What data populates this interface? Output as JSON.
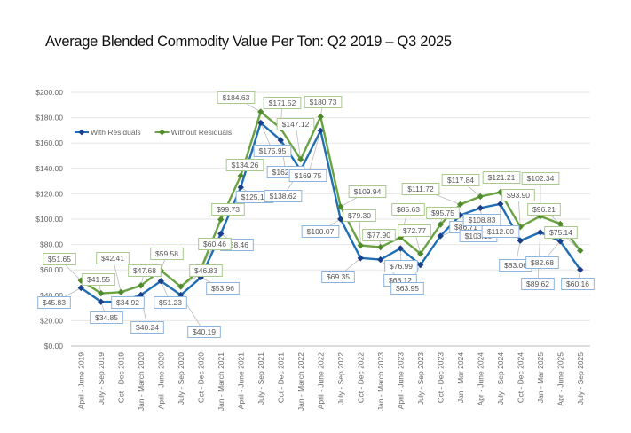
{
  "chart_data": {
    "type": "line",
    "title": "Average Blended Commodity Value Per Ton: Q2 2019 – Q3 2025",
    "xlabel": "",
    "ylabel": "",
    "ylim": [
      0,
      200
    ],
    "yticks": [
      "$0.00",
      "$20.00",
      "$40.00",
      "$60.00",
      "$80.00",
      "$100.00",
      "$120.00",
      "$140.00",
      "$160.00",
      "$180.00",
      "$200.00"
    ],
    "grid": true,
    "legend": "top-left",
    "categories": [
      "April - June 2019",
      "July - Sep 2019",
      "Oct - Dec 2019",
      "Jan - March 2020",
      "April - June 2020",
      "July - Sep 2020",
      "Oct - Dec 2020",
      "Jan - March 2021",
      "April - June 2021",
      "July - Sep 2021",
      "Oct - Dec 2021",
      "Jan - March 2022",
      "April - June 2022",
      "July - Sep 2022",
      "Oct - Dec 2022",
      "Jan - March 2023",
      "April - June 2023",
      "July - Sep 2023",
      "Oct - Dec 2023",
      "Jan - Mar 2024",
      "Apr - June 2024",
      "July - Sep 2024",
      "Oct - Dec 2024",
      "Jan - Mar 2025",
      "Apr - June 2025",
      "July - Sep 2025"
    ],
    "series": [
      {
        "name": "With Residuals",
        "color": "#1f6fb5",
        "values": [
          45.83,
          34.85,
          34.92,
          40.24,
          51.23,
          40.19,
          53.96,
          88.46,
          125.13,
          175.95,
          162.27,
          138.62,
          169.75,
          100.07,
          69.35,
          68.12,
          76.99,
          63.95,
          86.71,
          103.15,
          108.83,
          112.0,
          83.06,
          89.62,
          82.68,
          60.16
        ],
        "labels": [
          "$45.83",
          "$34.85",
          "$34.92",
          "$40.24",
          "$51.23",
          "$40.19",
          "$53.96",
          "$88.46",
          "$125.13",
          "$175.95",
          "$162.27",
          "$138.62",
          "$169.75",
          "$100.07",
          "$69.35",
          "$68.12",
          "$76.99",
          "$63.95",
          "$86.71",
          "$103.15",
          "$108.83",
          "$112.00",
          "$83.06",
          "$89.62",
          "$82.68",
          "$60.16"
        ]
      },
      {
        "name": "Without Residuals",
        "color": "#6aa343",
        "values": [
          51.65,
          41.55,
          42.41,
          47.68,
          59.58,
          46.83,
          60.46,
          99.73,
          134.26,
          184.63,
          171.52,
          147.12,
          180.73,
          109.94,
          79.3,
          77.9,
          85.63,
          72.77,
          95.75,
          111.72,
          117.84,
          121.21,
          93.9,
          102.34,
          96.21,
          75.14
        ],
        "labels": [
          "$51.65",
          "$41.55",
          "$42.41",
          "$47.68",
          "$59.58",
          "$46.83",
          "$60.46",
          "$99.73",
          "$134.26",
          "$184.63",
          "$171.52",
          "$147.12",
          "$180.73",
          "$109.94",
          "$79.30",
          "$77.90",
          "$85.63",
          "$72.77",
          "$95.75",
          "$111.72",
          "$117.84",
          "$121.21",
          "$93.90",
          "$102.34",
          "$96.21",
          "$75.14"
        ]
      }
    ]
  }
}
